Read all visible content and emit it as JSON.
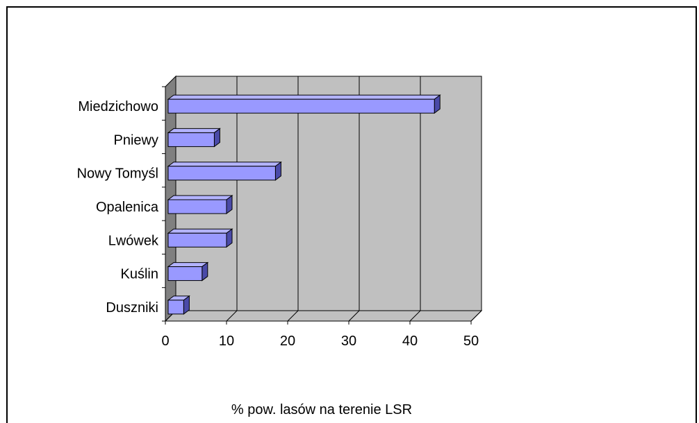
{
  "chart_data": {
    "type": "bar",
    "orientation": "horizontal",
    "three_d": true,
    "categories": [
      "Miedzichowo",
      "Pniewy",
      "Nowy Tomyśl",
      "Opalenica",
      "Lwówek",
      "Kuślin",
      "Duszniki"
    ],
    "values": [
      44,
      8,
      18,
      10,
      10,
      6,
      3
    ],
    "xlim": [
      0,
      50
    ],
    "xticks": [
      "0",
      "10",
      "20",
      "30",
      "40",
      "50"
    ],
    "xlabel": "% pow. lasów na terenie LSR",
    "ylabel": "",
    "title": "",
    "grid": true,
    "legend": "none",
    "colors": {
      "bar_front": "#9999ff",
      "bar_top": "#b3b3ff",
      "bar_side": "#4a4aa8",
      "plot_wall": "#c0c0c0",
      "side_wall": "#808080",
      "floor": "#c0c0c0"
    }
  }
}
